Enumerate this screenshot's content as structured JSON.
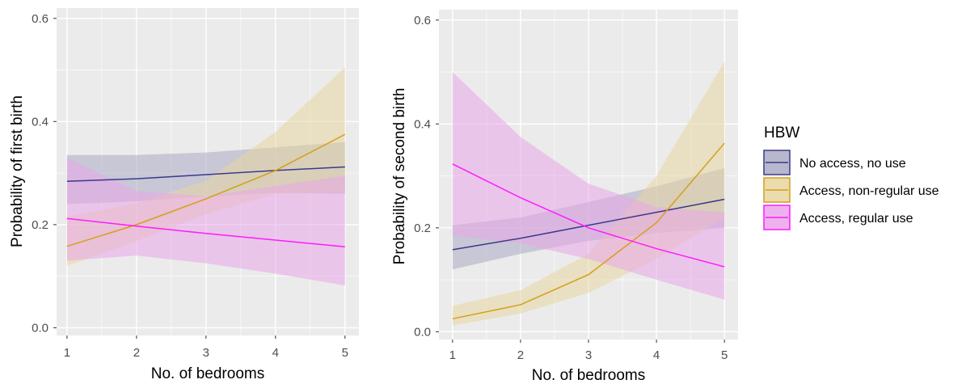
{
  "legend": {
    "title": "HBW",
    "placement": "right",
    "items": [
      {
        "label": "No access, no use",
        "color": "#3a3a8c"
      },
      {
        "label": "Access, non-regular use",
        "color": "#d4a017"
      },
      {
        "label": "Access, regular use",
        "color": "#ff1aff"
      }
    ]
  },
  "chart_data": [
    {
      "type": "line",
      "xlabel": "No. of bedrooms",
      "ylabel": "Probability of first birth",
      "x": [
        1,
        2,
        3,
        4,
        5
      ],
      "xlim": [
        0.85,
        5.2
      ],
      "ylim": [
        -0.015,
        0.62
      ],
      "yticks": [
        0.0,
        0.2,
        0.4,
        0.6
      ],
      "ytick_labels": [
        "0.0",
        "0.2",
        "0.4",
        "0.6"
      ],
      "xtick_labels": [
        "1",
        "2",
        "3",
        "4",
        "5"
      ],
      "grid": true,
      "ribbons": true,
      "series": [
        {
          "name": "No access, no use",
          "color": "#3a3a8c",
          "fill": "#aaaac4",
          "values": [
            0.284,
            0.289,
            0.297,
            0.305,
            0.312
          ],
          "lower": [
            0.24,
            0.245,
            0.255,
            0.262,
            0.26
          ],
          "upper": [
            0.335,
            0.335,
            0.34,
            0.35,
            0.36
          ]
        },
        {
          "name": "Access, non-regular use",
          "color": "#d4a017",
          "fill": "#e8d5a0",
          "values": [
            0.158,
            0.2,
            0.25,
            0.305,
            0.375
          ],
          "lower": [
            0.12,
            0.168,
            0.22,
            0.26,
            0.262
          ],
          "upper": [
            0.215,
            0.242,
            0.285,
            0.38,
            0.505
          ]
        },
        {
          "name": "Access, regular use",
          "color": "#ff1aff",
          "fill": "#eaa5ea",
          "values": [
            0.212,
            0.197,
            0.183,
            0.17,
            0.157
          ],
          "lower": [
            0.13,
            0.14,
            0.125,
            0.105,
            0.082
          ],
          "upper": [
            0.33,
            0.265,
            0.255,
            0.275,
            0.295
          ]
        }
      ]
    },
    {
      "type": "line",
      "xlabel": "No. of bedrooms",
      "ylabel": "Probability of second birth",
      "x": [
        1,
        2,
        3,
        4,
        5
      ],
      "xlim": [
        0.8,
        5.2
      ],
      "ylim": [
        -0.015,
        0.62
      ],
      "yticks": [
        0.0,
        0.2,
        0.4,
        0.6
      ],
      "ytick_labels": [
        "0.0",
        "0.2",
        "0.4",
        "0.6"
      ],
      "xtick_labels": [
        "1",
        "2",
        "3",
        "4",
        "5"
      ],
      "grid": true,
      "ribbons": true,
      "series": [
        {
          "name": "No access, no use",
          "color": "#3a3a8c",
          "fill": "#aaaac4",
          "values": [
            0.158,
            0.18,
            0.205,
            0.23,
            0.255
          ],
          "lower": [
            0.12,
            0.15,
            0.175,
            0.19,
            0.2
          ],
          "upper": [
            0.205,
            0.22,
            0.25,
            0.28,
            0.315
          ]
        },
        {
          "name": "Access, non-regular use",
          "color": "#d4a017",
          "fill": "#e8d5a0",
          "values": [
            0.025,
            0.052,
            0.11,
            0.21,
            0.363
          ],
          "lower": [
            0.012,
            0.035,
            0.075,
            0.14,
            0.22
          ],
          "upper": [
            0.05,
            0.08,
            0.15,
            0.3,
            0.52
          ]
        },
        {
          "name": "Access, regular use",
          "color": "#ff1aff",
          "fill": "#eaa5ea",
          "values": [
            0.323,
            0.258,
            0.2,
            0.16,
            0.125
          ],
          "lower": [
            0.185,
            0.17,
            0.14,
            0.1,
            0.062
          ],
          "upper": [
            0.5,
            0.375,
            0.285,
            0.24,
            0.23
          ]
        }
      ]
    }
  ]
}
